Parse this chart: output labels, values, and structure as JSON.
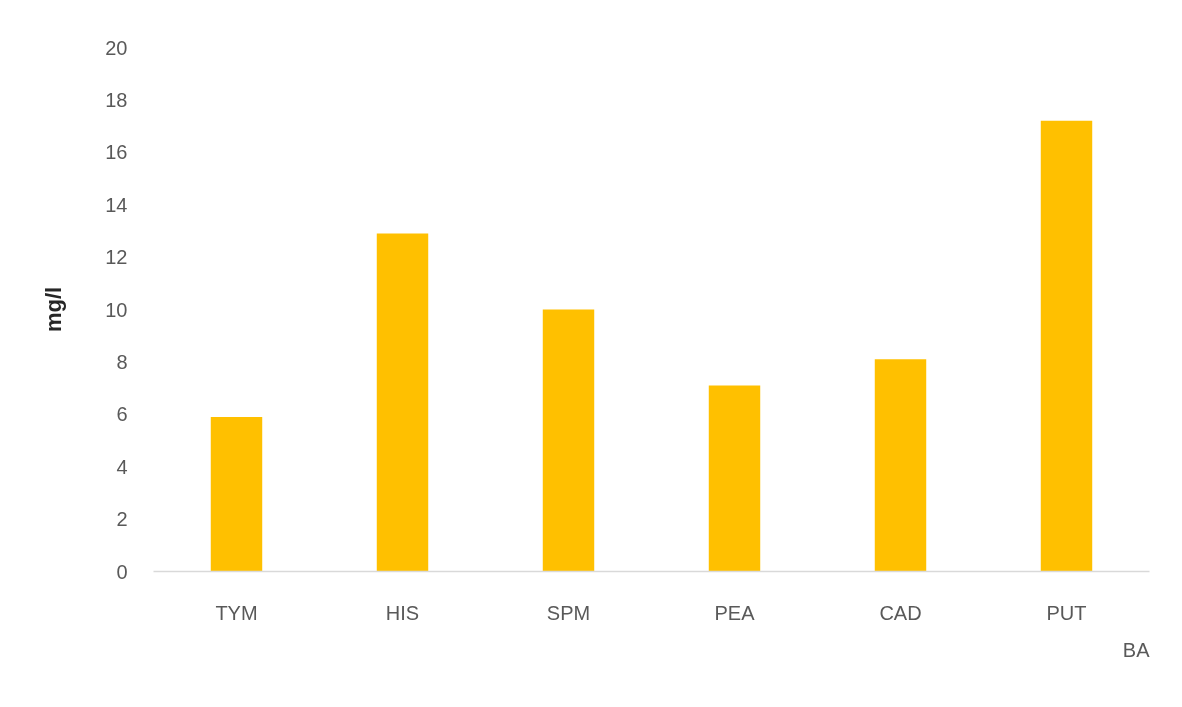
{
  "chart_data": {
    "type": "bar",
    "categories": [
      "TYM",
      "HIS",
      "SPM",
      "PEA",
      "CAD",
      "PUT"
    ],
    "values": [
      5.9,
      12.9,
      10.0,
      7.1,
      8.1,
      17.2
    ],
    "color": "#ffc000",
    "ylabel": "mg/l",
    "xlabel": "BA",
    "ylim": [
      0,
      20
    ],
    "yticks": [
      0,
      2,
      4,
      6,
      8,
      10,
      12,
      14,
      16,
      18,
      20
    ]
  }
}
